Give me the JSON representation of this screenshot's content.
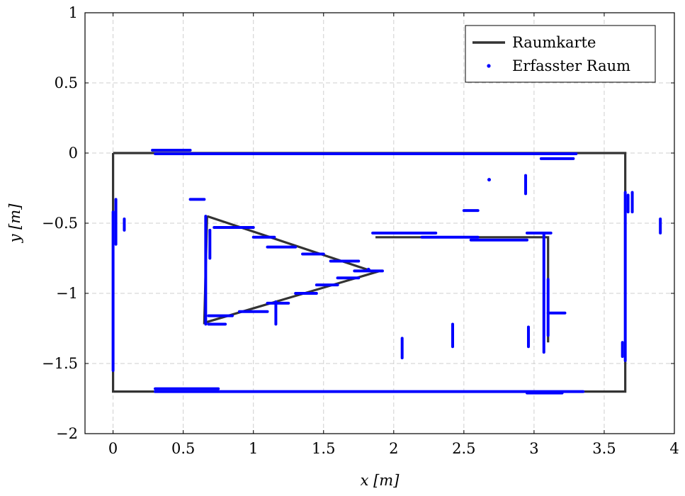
{
  "chart_data": {
    "type": "line",
    "title": "",
    "xlabel": "x [m]",
    "ylabel": "y [m]",
    "xlim": [
      -0.2,
      4
    ],
    "ylim": [
      -2,
      1
    ],
    "xticks": [
      0,
      0.5,
      1,
      1.5,
      2,
      2.5,
      3,
      3.5,
      4
    ],
    "yticks": [
      -2,
      -1.5,
      -1,
      -0.5,
      0,
      0.5,
      1
    ],
    "xtick_labels": [
      "0",
      "0.5",
      "1",
      "1.5",
      "2",
      "2.5",
      "3",
      "3.5",
      "4"
    ],
    "ytick_labels": [
      "−2",
      "−1.5",
      "−1",
      "−0.5",
      "0",
      "0.5",
      "1"
    ],
    "grid": true,
    "legend_position": "top-right",
    "colors": {
      "map": "#333333",
      "scan": "#0000ff",
      "grid": "#cfcfcf",
      "frame": "#000000"
    },
    "series": [
      {
        "name": "Raumkarte",
        "style": "line",
        "polylines": [
          [
            [
              0,
              0
            ],
            [
              3.65,
              0
            ],
            [
              3.65,
              -1.7
            ],
            [
              0,
              -1.7
            ],
            [
              0,
              0
            ]
          ],
          [
            [
              0.67,
              -0.45
            ],
            [
              1.87,
              -0.85
            ],
            [
              0.65,
              -1.21
            ],
            [
              0.67,
              -0.45
            ]
          ],
          [
            [
              1.87,
              -0.6
            ],
            [
              3.1,
              -0.6
            ],
            [
              3.1,
              -1.35
            ]
          ]
        ]
      },
      {
        "name": "Erfasster Raum",
        "style": "points",
        "hsegments": [
          [
            0.28,
            0.55,
            0.02
          ],
          [
            0.3,
            3.3,
            -0.005
          ],
          [
            3.05,
            3.28,
            -0.04
          ],
          [
            0.3,
            3.35,
            -1.7
          ],
          [
            0.3,
            0.75,
            -1.68
          ],
          [
            2.95,
            3.2,
            -1.71
          ],
          [
            0.55,
            0.65,
            -0.33
          ],
          [
            2.5,
            2.6,
            -0.41
          ],
          [
            0.72,
            1.0,
            -0.53
          ],
          [
            1.0,
            1.15,
            -0.6
          ],
          [
            1.1,
            1.3,
            -0.67
          ],
          [
            1.35,
            1.5,
            -0.72
          ],
          [
            1.55,
            1.75,
            -0.77
          ],
          [
            1.72,
            1.92,
            -0.84
          ],
          [
            1.6,
            1.75,
            -0.89
          ],
          [
            1.45,
            1.6,
            -0.94
          ],
          [
            1.3,
            1.45,
            -1.0
          ],
          [
            1.1,
            1.25,
            -1.07
          ],
          [
            0.9,
            1.1,
            -1.13
          ],
          [
            0.68,
            0.85,
            -1.16
          ],
          [
            0.68,
            0.8,
            -1.22
          ],
          [
            1.85,
            2.3,
            -0.57
          ],
          [
            2.2,
            2.6,
            -0.6
          ],
          [
            2.55,
            2.95,
            -0.62
          ],
          [
            2.95,
            3.12,
            -0.57
          ],
          [
            3.1,
            3.22,
            -1.14
          ]
        ],
        "vsegments": [
          [
            0.0,
            -0.42,
            -1.55
          ],
          [
            0.02,
            -0.33,
            -0.65
          ],
          [
            0.08,
            -0.47,
            -0.55
          ],
          [
            0.66,
            -0.45,
            -1.22
          ],
          [
            0.69,
            -0.55,
            -0.75
          ],
          [
            1.16,
            -1.06,
            -1.22
          ],
          [
            2.06,
            -1.32,
            -1.46
          ],
          [
            2.42,
            -1.22,
            -1.38
          ],
          [
            2.96,
            -1.24,
            -1.38
          ],
          [
            2.94,
            -0.16,
            -0.29
          ],
          [
            3.07,
            -0.58,
            -1.42
          ],
          [
            3.1,
            -0.9,
            -1.3
          ],
          [
            3.65,
            -0.28,
            -1.48
          ],
          [
            3.63,
            -1.35,
            -1.45
          ],
          [
            3.67,
            -0.3,
            -0.42
          ],
          [
            3.7,
            -0.28,
            -0.42
          ],
          [
            3.9,
            -0.47,
            -0.57
          ]
        ],
        "points": [
          [
            2.68,
            -0.19
          ],
          [
            1.82,
            -0.83
          ]
        ]
      }
    ]
  }
}
